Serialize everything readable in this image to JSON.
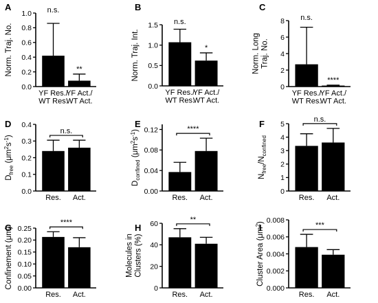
{
  "chart_data": [
    {
      "panel": "A",
      "type": "bar",
      "ylabel": [
        "Norm. Traj. No."
      ],
      "categories": [
        [
          "YF Res./",
          "WT Res."
        ],
        [
          "YF Act./",
          "WT Act."
        ]
      ],
      "values": [
        0.42,
        0.08
      ],
      "errors": [
        0.44,
        0.09
      ],
      "ylim": [
        0,
        1.0
      ],
      "yticks": [
        "0.0",
        "0.2",
        "0.4",
        "0.6",
        "0.8",
        "1.0"
      ],
      "significance": [
        {
          "text": "n.s.",
          "bar": 0,
          "type": "above"
        },
        {
          "text": "**",
          "bar": 1,
          "type": "above"
        }
      ]
    },
    {
      "panel": "B",
      "type": "bar",
      "ylabel": [
        "Norm. Traj. Int."
      ],
      "categories": [
        [
          "YF Res./",
          "WT Res."
        ],
        [
          "YF Act./",
          "WT Act."
        ]
      ],
      "values": [
        1.07,
        0.62
      ],
      "errors": [
        0.32,
        0.19
      ],
      "ylim": [
        0,
        1.5
      ],
      "yticks": [
        "0.0",
        "0.5",
        "1.0",
        "1.5"
      ],
      "significance": [
        {
          "text": "n.s.",
          "bar": 0,
          "type": "above"
        },
        {
          "text": "*",
          "bar": 1,
          "type": "above"
        }
      ]
    },
    {
      "panel": "C",
      "type": "bar",
      "ylabel": [
        "Norm. Long",
        "Traj. No."
      ],
      "categories": [
        [
          "YF Res./",
          "WT Res."
        ],
        [
          "YF Act./",
          "WT Act."
        ]
      ],
      "values": [
        2.7,
        0.12
      ],
      "errors": [
        4.5,
        0.05
      ],
      "ylim": [
        0,
        8
      ],
      "yticks": [
        "0",
        "2",
        "4",
        "6",
        "8"
      ],
      "significance": [
        {
          "text": "n.s.",
          "bar": 0,
          "type": "above"
        },
        {
          "text": "****",
          "bar": 1,
          "type": "above"
        }
      ]
    },
    {
      "panel": "D",
      "type": "bar",
      "ylabel": [
        "D_{free} (μm^{2}s^{-1})"
      ],
      "categories": [
        [
          "Res."
        ],
        [
          "Act."
        ]
      ],
      "values": [
        0.24,
        0.26
      ],
      "errors": [
        0.065,
        0.045
      ],
      "ylim": [
        0,
        0.4
      ],
      "yticks": [
        "0.0",
        "0.1",
        "0.2",
        "0.3",
        "0.4"
      ],
      "significance": [
        {
          "text": "n.s.",
          "type": "bracket"
        }
      ]
    },
    {
      "panel": "E",
      "type": "bar",
      "ylabel": [
        "D_{confined} (μm^{2}s^{-1})"
      ],
      "categories": [
        [
          "Res."
        ],
        [
          "Act."
        ]
      ],
      "values": [
        0.037,
        0.078
      ],
      "errors": [
        0.019,
        0.025
      ],
      "ylim": [
        0,
        0.13
      ],
      "yticks": [
        "0.00",
        "0.04",
        "0.08",
        "0.12"
      ],
      "ytick_values": [
        0,
        0.04,
        0.08,
        0.12
      ],
      "significance": [
        {
          "text": "****",
          "type": "bracket"
        }
      ]
    },
    {
      "panel": "F",
      "type": "bar",
      "ylabel": [
        "N_{free}/N_{confined}"
      ],
      "categories": [
        [
          "Res."
        ],
        [
          "Act."
        ]
      ],
      "values": [
        3.35,
        3.6
      ],
      "errors": [
        0.9,
        1.05
      ],
      "ylim": [
        0,
        5
      ],
      "yticks": [
        "0",
        "1",
        "2",
        "3",
        "4",
        "5"
      ],
      "significance": [
        {
          "text": "n.s.",
          "type": "bracket"
        }
      ]
    },
    {
      "panel": "G",
      "type": "bar",
      "ylabel": [
        "Confinement (μm)"
      ],
      "categories": [
        [
          "Res."
        ],
        [
          "Act."
        ]
      ],
      "values": [
        0.213,
        0.17
      ],
      "errors": [
        0.022,
        0.04
      ],
      "ylim": [
        0,
        0.25
      ],
      "yticks": [
        "0.00",
        "0.05",
        "0.10",
        "0.15",
        "0.20",
        "0.25"
      ],
      "significance": [
        {
          "text": "****",
          "type": "bracket"
        }
      ]
    },
    {
      "panel": "H",
      "type": "bar",
      "ylabel": [
        "Molecules in",
        "Clusters (%)"
      ],
      "categories": [
        [
          "Res."
        ],
        [
          "Act."
        ]
      ],
      "values": [
        47,
        41
      ],
      "errors": [
        8,
        6
      ],
      "ylim": [
        0,
        60
      ],
      "yticks": [
        "0",
        "20",
        "40",
        "60"
      ],
      "significance": [
        {
          "text": "**",
          "type": "bracket"
        }
      ]
    },
    {
      "panel": "I",
      "type": "bar",
      "ylabel": [
        "Cluster Area (μm^{2})"
      ],
      "categories": [
        [
          "Res."
        ],
        [
          "Act."
        ]
      ],
      "values": [
        0.0048,
        0.0039
      ],
      "errors": [
        0.0015,
        0.0006
      ],
      "ylim": [
        0,
        0.008
      ],
      "yticks": [
        "0.000",
        "0.002",
        "0.004",
        "0.006",
        "0.008"
      ],
      "significance": [
        {
          "text": "***",
          "type": "bracket"
        }
      ]
    }
  ]
}
